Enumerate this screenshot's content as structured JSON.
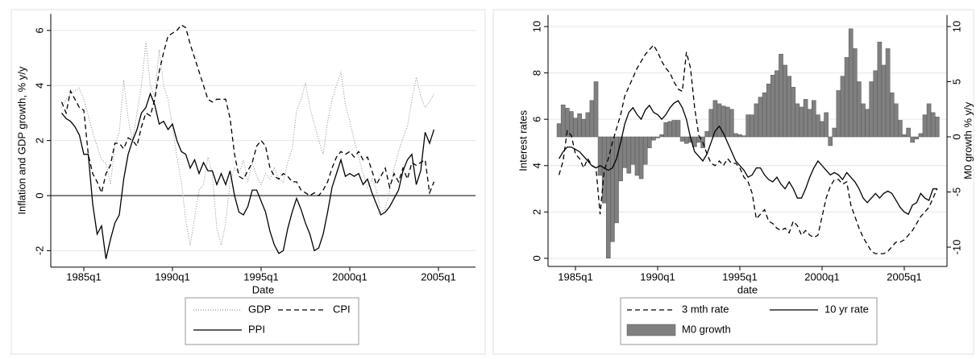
{
  "chart_data": [
    {
      "type": "line",
      "xlabel": "Date",
      "ylabel": "Inflation and GDP growth, % y/y",
      "x": [
        "1983q4",
        "1984q1",
        "1984q2",
        "1984q3",
        "1984q4",
        "1985q1",
        "1985q2",
        "1985q3",
        "1985q4",
        "1986q1",
        "1986q2",
        "1986q3",
        "1986q4",
        "1987q1",
        "1987q2",
        "1987q3",
        "1987q4",
        "1988q1",
        "1988q2",
        "1988q3",
        "1988q4",
        "1989q1",
        "1989q2",
        "1989q3",
        "1989q4",
        "1990q1",
        "1990q2",
        "1990q3",
        "1990q4",
        "1991q1",
        "1991q2",
        "1991q3",
        "1991q4",
        "1992q1",
        "1992q2",
        "1992q3",
        "1992q4",
        "1993q1",
        "1993q2",
        "1993q3",
        "1993q4",
        "1994q1",
        "1994q2",
        "1994q3",
        "1994q4",
        "1995q1",
        "1995q2",
        "1995q3",
        "1995q4",
        "1996q1",
        "1996q2",
        "1996q3",
        "1996q4",
        "1997q1",
        "1997q2",
        "1997q3",
        "1997q4",
        "1998q1",
        "1998q2",
        "1998q3",
        "1998q4",
        "1999q1",
        "1999q2",
        "1999q3",
        "1999q4",
        "2000q1",
        "2000q2",
        "2000q3",
        "2000q4",
        "2001q1",
        "2001q2",
        "2001q3",
        "2001q4",
        "2002q1",
        "2002q2",
        "2002q3",
        "2002q4",
        "2003q1",
        "2003q2",
        "2003q3",
        "2003q4",
        "2004q1",
        "2004q2",
        "2004q3",
        "2004q4"
      ],
      "series": [
        {
          "name": "GDP",
          "color": "#8c8c8c",
          "dash": "dotted",
          "values": [
            3.2,
            3.5,
            3.7,
            3.8,
            3.9,
            3.5,
            2.9,
            2.3,
            1.8,
            1.3,
            1.2,
            0.4,
            1.8,
            2.3,
            4.2,
            2.8,
            2.0,
            3.0,
            4.0,
            5.6,
            4.0,
            3.6,
            5.3,
            4.0,
            3.5,
            2.5,
            1.4,
            0.5,
            -0.9,
            -1.8,
            -0.8,
            0.2,
            0.4,
            1.4,
            0.8,
            -1.2,
            -1.8,
            -1.0,
            0.5,
            1.0,
            0.8,
            1.3,
            0.5,
            1.2,
            0.7,
            0.4,
            0.8,
            0.6,
            1.0,
            0.6,
            0.5,
            1.2,
            1.7,
            3.1,
            3.5,
            4.1,
            3.2,
            2.6,
            2.0,
            1.5,
            2.7,
            3.5,
            4.0,
            4.5,
            3.3,
            2.7,
            2.0,
            1.4,
            0.8,
            0.3,
            0.6,
            0.2,
            -0.6,
            -0.5,
            0.2,
            1.0,
            1.6,
            2.1,
            2.5,
            3.5,
            4.3,
            3.6,
            3.2,
            3.4,
            3.7
          ]
        },
        {
          "name": "CPI",
          "color": "#000000",
          "dash": "dashed",
          "values": [
            3.4,
            3.0,
            3.8,
            3.5,
            3.2,
            3.1,
            1.5,
            0.8,
            0.5,
            0.1,
            0.8,
            1.1,
            1.9,
            1.9,
            1.7,
            2.1,
            2.0,
            1.8,
            2.5,
            3.0,
            2.9,
            3.5,
            4.5,
            5.2,
            5.8,
            5.9,
            6.0,
            6.2,
            6.1,
            5.5,
            5.0,
            4.5,
            4.0,
            3.5,
            3.4,
            3.5,
            3.5,
            3.5,
            2.8,
            1.5,
            0.7,
            0.6,
            0.9,
            1.2,
            1.8,
            2.0,
            1.8,
            1.0,
            0.7,
            0.6,
            0.8,
            0.7,
            0.5,
            0.5,
            0.2,
            0.1,
            0.0,
            0.1,
            0.0,
            0.2,
            0.5,
            1.0,
            1.4,
            1.6,
            1.5,
            1.6,
            1.4,
            1.6,
            1.3,
            1.4,
            0.9,
            0.4,
            0.7,
            1.0,
            0.3,
            0.8,
            0.5,
            1.0,
            0.6,
            1.2,
            1.1,
            1.2,
            1.3,
            0.1,
            0.5
          ]
        },
        {
          "name": "PPI",
          "color": "#000000",
          "dash": "solid",
          "values": [
            3.0,
            2.8,
            2.7,
            2.5,
            2.2,
            1.5,
            1.5,
            -0.3,
            -1.4,
            -1.1,
            -2.3,
            -1.6,
            -1.0,
            -0.7,
            0.6,
            1.5,
            2.0,
            2.4,
            3.0,
            3.2,
            3.7,
            3.3,
            2.6,
            2.7,
            2.4,
            2.6,
            2.0,
            1.6,
            1.5,
            1.0,
            1.3,
            0.8,
            1.2,
            0.9,
            0.9,
            0.4,
            0.8,
            0.4,
            0.9,
            0.0,
            -0.6,
            -0.7,
            -0.4,
            0.2,
            0.2,
            -0.2,
            -0.6,
            -1.3,
            -1.8,
            -2.1,
            -2.0,
            -1.2,
            -0.6,
            -0.1,
            -0.5,
            -1.0,
            -1.4,
            -2.0,
            -1.9,
            -1.4,
            -0.6,
            0.3,
            0.8,
            1.3,
            0.7,
            0.8,
            0.7,
            0.8,
            0.4,
            0.6,
            0.1,
            -0.3,
            -0.7,
            -0.6,
            -0.4,
            -0.1,
            0.2,
            0.9,
            1.3,
            1.5,
            0.4,
            0.9,
            2.3,
            1.9,
            2.4
          ]
        }
      ],
      "ylim": [
        -2.6,
        6.6
      ],
      "yticks": [
        -2,
        0,
        2,
        4,
        6
      ],
      "xticks": [
        "1985q1",
        "1990q1",
        "1995q1",
        "2000q1",
        "2005q1"
      ],
      "hline": 0,
      "grid": true
    },
    {
      "type": "combo",
      "xlabel": "date",
      "ylabel": "Interest rates",
      "y2label": "M0 growth % y/y",
      "x": [
        "1984q1",
        "1984q2",
        "1984q3",
        "1984q4",
        "1985q1",
        "1985q2",
        "1985q3",
        "1985q4",
        "1986q1",
        "1986q2",
        "1986q3",
        "1986q4",
        "1987q1",
        "1987q2",
        "1987q3",
        "1987q4",
        "1988q1",
        "1988q2",
        "1988q3",
        "1988q4",
        "1989q1",
        "1989q2",
        "1989q3",
        "1989q4",
        "1990q1",
        "1990q2",
        "1990q3",
        "1990q4",
        "1991q1",
        "1991q2",
        "1991q3",
        "1991q4",
        "1992q1",
        "1992q2",
        "1992q3",
        "1992q4",
        "1993q1",
        "1993q2",
        "1993q3",
        "1993q4",
        "1994q1",
        "1994q2",
        "1994q3",
        "1994q4",
        "1995q1",
        "1995q2",
        "1995q3",
        "1995q4",
        "1996q1",
        "1996q2",
        "1996q3",
        "1996q4",
        "1997q1",
        "1997q2",
        "1997q3",
        "1997q4",
        "1998q1",
        "1998q2",
        "1998q3",
        "1998q4",
        "1999q1",
        "1999q2",
        "1999q3",
        "1999q4",
        "2000q1",
        "2000q2",
        "2000q3",
        "2000q4",
        "2001q1",
        "2001q2",
        "2001q3",
        "2001q4",
        "2002q1",
        "2002q2",
        "2002q3",
        "2002q4",
        "2003q1",
        "2003q2",
        "2003q3",
        "2003q4",
        "2004q1",
        "2004q2",
        "2004q3",
        "2004q4",
        "2005q1",
        "2005q2",
        "2005q3",
        "2005q4",
        "2006q1",
        "2006q2",
        "2006q3",
        "2006q4",
        "2007q1"
      ],
      "series": [
        {
          "name": "3 mth rate",
          "type": "line",
          "color": "#000000",
          "dash": "dashed",
          "values": [
            3.6,
            4.2,
            5.5,
            5.3,
            4.5,
            4.3,
            3.9,
            4.3,
            4.0,
            3.9,
            1.9,
            3.8,
            4.3,
            5.0,
            5.6,
            6.2,
            7.0,
            7.4,
            7.8,
            8.2,
            8.5,
            8.8,
            9.0,
            9.2,
            8.9,
            8.5,
            8.2,
            8.0,
            7.6,
            7.3,
            7.2,
            8.9,
            8.2,
            6.5,
            5.3,
            5.0,
            4.5,
            4.1,
            4.0,
            4.2,
            4.0,
            4.3,
            4.1,
            4.1,
            3.9,
            3.5,
            3.3,
            2.8,
            1.7,
            1.9,
            2.1,
            1.6,
            1.5,
            1.3,
            1.2,
            1.3,
            1.1,
            1.6,
            1.4,
            1.0,
            1.2,
            1.0,
            0.9,
            1.0,
            1.8,
            2.6,
            3.1,
            3.4,
            3.4,
            3.2,
            3.3,
            2.3,
            1.8,
            1.3,
            0.9,
            0.6,
            0.3,
            0.2,
            0.2,
            0.2,
            0.3,
            0.5,
            0.7,
            0.7,
            0.8,
            1.0,
            1.2,
            1.5,
            1.8,
            2.0,
            2.2,
            2.6,
            3.0
          ]
        },
        {
          "name": "10 yr rate",
          "type": "line",
          "color": "#000000",
          "dash": "solid",
          "values": [
            4.3,
            4.6,
            4.8,
            4.8,
            4.7,
            4.6,
            4.4,
            4.2,
            4.0,
            3.9,
            4.0,
            3.9,
            3.8,
            3.9,
            4.3,
            5.0,
            5.8,
            6.3,
            6.5,
            6.2,
            6.0,
            6.4,
            6.6,
            6.3,
            6.2,
            6.0,
            6.2,
            6.5,
            6.7,
            6.8,
            6.5,
            6.0,
            5.2,
            4.6,
            4.4,
            4.2,
            4.5,
            5.0,
            5.5,
            5.7,
            5.4,
            5.0,
            4.6,
            4.2,
            4.0,
            3.8,
            3.5,
            3.6,
            3.9,
            3.9,
            3.6,
            3.4,
            3.3,
            3.5,
            3.2,
            3.0,
            3.3,
            3.0,
            2.6,
            2.6,
            3.0,
            3.5,
            3.9,
            4.2,
            4.0,
            3.8,
            3.6,
            3.7,
            3.6,
            3.4,
            3.7,
            3.5,
            3.3,
            3.0,
            2.6,
            2.4,
            2.6,
            2.8,
            2.6,
            2.8,
            2.9,
            2.8,
            2.5,
            2.2,
            2.0,
            1.9,
            2.3,
            2.4,
            2.8,
            2.6,
            2.5,
            3.0,
            3.0
          ]
        },
        {
          "name": "M0 growth",
          "type": "bar",
          "axis": "y2",
          "color": "#808080",
          "values": [
            1.2,
            2.9,
            2.6,
            2.3,
            1.7,
            2.1,
            1.6,
            2.2,
            3.3,
            5.0,
            -3.5,
            -6.0,
            -11.0,
            -9.5,
            -7.8,
            -4.0,
            -2.8,
            -3.3,
            -2.5,
            -3.5,
            -3.8,
            -2.5,
            -1.0,
            -0.3,
            -0.1,
            0.2,
            1.3,
            1.4,
            1.5,
            1.5,
            -0.4,
            -0.6,
            -0.5,
            -0.9,
            -0.5,
            -1.0,
            0.5,
            2.5,
            3.3,
            3.0,
            2.8,
            2.7,
            2.5,
            0.3,
            0.2,
            0.1,
            2.0,
            2.0,
            3.0,
            3.6,
            4.0,
            4.8,
            5.6,
            6.0,
            7.5,
            6.5,
            5.5,
            4.5,
            3.0,
            2.7,
            3.4,
            2.5,
            3.3,
            2.0,
            1.4,
            2.2,
            -0.8,
            0.8,
            4.2,
            5.5,
            7.2,
            9.8,
            8.0,
            5.0,
            3.0,
            2.5,
            5.0,
            6.0,
            8.6,
            6.5,
            8.0,
            4.0,
            3.0,
            1.5,
            0.2,
            0.8,
            -0.5,
            -0.2,
            0.3,
            2.0,
            3.0,
            2.2,
            1.8
          ]
        }
      ],
      "ylim": [
        -0.35,
        10.5
      ],
      "yticks": [
        0,
        2,
        4,
        6,
        8,
        10
      ],
      "y2lim": [
        -11.75,
        11.05
      ],
      "y2ticks": [
        -10,
        -5,
        0,
        5,
        10
      ],
      "xticks": [
        "1985q1",
        "1990q1",
        "1995q1",
        "2000q1",
        "2005q1"
      ],
      "grid": true
    }
  ]
}
